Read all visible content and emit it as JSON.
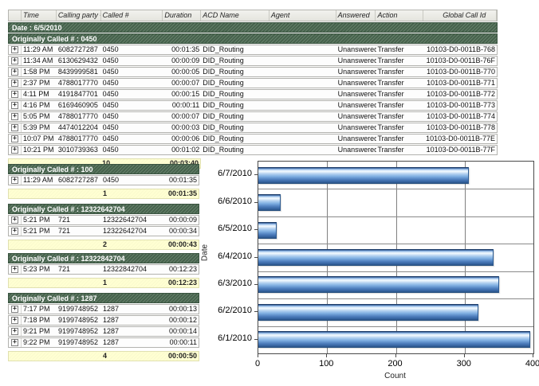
{
  "header": {
    "columns": [
      "Time",
      "Calling party #",
      "Called #",
      "Duration",
      "ACD Name",
      "Agent",
      "Answered",
      "Action",
      "Global Call Id"
    ]
  },
  "date_band": "Date : 6/5/2010",
  "main_table": {
    "group_label": "Originally Called # : 0450",
    "rows": [
      {
        "time": "11:29 AM",
        "calling": "6082727287",
        "called": "0450",
        "duration": "00:01:35",
        "acd": "DID_Routing",
        "agent": "",
        "answered": "Unanswered",
        "action": "Transfer",
        "global_id": "10103-D0-0011B-768"
      },
      {
        "time": "11:34 AM",
        "calling": "6130629432",
        "called": "0450",
        "duration": "00:00:09",
        "acd": "DID_Routing",
        "agent": "",
        "answered": "Unanswered",
        "action": "Transfer",
        "global_id": "10103-D0-0011B-76F"
      },
      {
        "time": "1:58 PM",
        "calling": "8439999581",
        "called": "0450",
        "duration": "00:00:05",
        "acd": "DID_Routing",
        "agent": "",
        "answered": "Unanswered",
        "action": "Transfer",
        "global_id": "10103-D0-0011B-770"
      },
      {
        "time": "2:37 PM",
        "calling": "4788017770",
        "called": "0450",
        "duration": "00:00:07",
        "acd": "DID_Routing",
        "agent": "",
        "answered": "Unanswered",
        "action": "Transfer",
        "global_id": "10103-D0-0011B-771"
      },
      {
        "time": "4:11 PM",
        "calling": "4191847701",
        "called": "0450",
        "duration": "00:00:15",
        "acd": "DID_Routing",
        "agent": "",
        "answered": "Unanswered",
        "action": "Transfer",
        "global_id": "10103-D0-0011B-772"
      },
      {
        "time": "4:16 PM",
        "calling": "6169460905",
        "called": "0450",
        "duration": "00:00:11",
        "acd": "DID_Routing",
        "agent": "",
        "answered": "Unanswered",
        "action": "Transfer",
        "global_id": "10103-D0-0011B-773"
      },
      {
        "time": "5:05 PM",
        "calling": "4788017770",
        "called": "0450",
        "duration": "00:00:07",
        "acd": "DID_Routing",
        "agent": "",
        "answered": "Unanswered",
        "action": "Transfer",
        "global_id": "10103-D0-0011B-774"
      },
      {
        "time": "5:39 PM",
        "calling": "4474012204",
        "called": "0450",
        "duration": "00:00:03",
        "acd": "DID_Routing",
        "agent": "",
        "answered": "Unanswered",
        "action": "Transfer",
        "global_id": "10103-D0-0011B-778"
      },
      {
        "time": "10:07 PM",
        "calling": "4788017770",
        "called": "0450",
        "duration": "00:00:06",
        "acd": "DID_Routing",
        "agent": "",
        "answered": "Unanswered",
        "action": "Transfer",
        "global_id": "10103-D0-0011B-77E"
      },
      {
        "time": "10:21 PM",
        "calling": "3010739363",
        "called": "0450",
        "duration": "00:01:02",
        "acd": "DID_Routing",
        "agent": "",
        "answered": "Unanswered",
        "action": "Transfer",
        "global_id": "10103-D0-0011B-77F"
      }
    ],
    "summary": {
      "count": "10",
      "total": "00:03:40"
    }
  },
  "sections": [
    {
      "group_label": "Originally Called # : 100",
      "rows": [
        {
          "time": "11:29 AM",
          "calling": "6082727287",
          "called": "0450",
          "duration": "00:01:35"
        }
      ],
      "summary": {
        "count": "1",
        "total": "00:01:35"
      }
    },
    {
      "group_label": "Originally Called # : 12322642704",
      "rows": [
        {
          "time": "5:21 PM",
          "calling": "721",
          "called": "12322642704",
          "duration": "00:00:09"
        },
        {
          "time": "5:21 PM",
          "calling": "721",
          "called": "12322642704",
          "duration": "00:00:34"
        }
      ],
      "summary": {
        "count": "2",
        "total": "00:00:43"
      }
    },
    {
      "group_label": "Originally Called # : 12322842704",
      "rows": [
        {
          "time": "5:23 PM",
          "calling": "721",
          "called": "12322842704",
          "duration": "00:12:23"
        }
      ],
      "summary": {
        "count": "1",
        "total": "00:12:23"
      }
    },
    {
      "group_label": "Originally Called # : 1287",
      "rows": [
        {
          "time": "7:17 PM",
          "calling": "9199748952",
          "called": "1287",
          "duration": "00:00:13"
        },
        {
          "time": "7:18 PM",
          "calling": "9199748952",
          "called": "1287",
          "duration": "00:00:12"
        },
        {
          "time": "9:21 PM",
          "calling": "9199748952",
          "called": "1287",
          "duration": "00:00:14"
        },
        {
          "time": "9:22 PM",
          "calling": "9199748952",
          "called": "1287",
          "duration": "00:00:11"
        }
      ],
      "summary": {
        "count": "4",
        "total": "00:00:50"
      }
    }
  ],
  "icons": {
    "expander": "+"
  },
  "chart_data": {
    "type": "bar",
    "orientation": "horizontal",
    "categories": [
      "6/7/2010",
      "6/6/2010",
      "6/5/2010",
      "6/4/2010",
      "6/3/2010",
      "6/2/2010",
      "6/1/2010"
    ],
    "values": [
      306,
      33,
      27,
      342,
      350,
      320,
      395
    ],
    "title": "",
    "xlabel": "Count",
    "ylabel": "Date",
    "xlim": [
      0,
      400
    ],
    "xticks": [
      0,
      100,
      200,
      300,
      400
    ],
    "grid": true,
    "legend_position": "none",
    "bar_color": "#5b8fd0"
  },
  "colors": {
    "group_band": "#4c6a52",
    "summary_bg": "#ffffd2",
    "bar_accent": "#5b8fd0"
  }
}
